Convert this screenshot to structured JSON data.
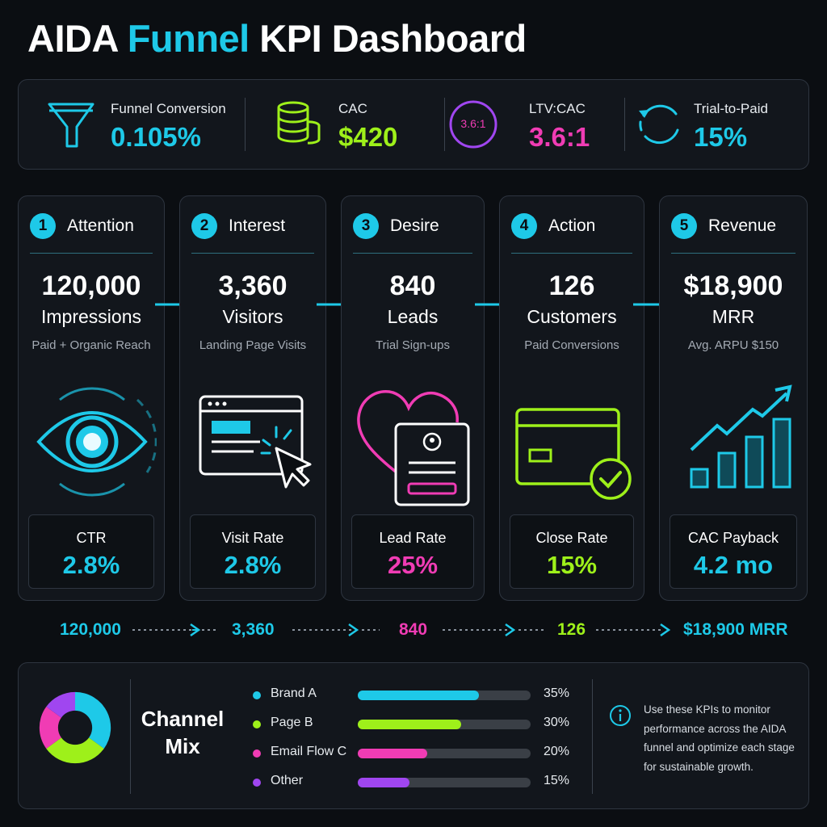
{
  "header": {
    "title_prefix": "AIDA ",
    "title_accent": "Funnel",
    "title_suffix": " KPI Dashboard"
  },
  "colors": {
    "cyan": "#1ec9e8",
    "lime": "#9ef01a",
    "magenta": "#f03cb4",
    "purple": "#a046f0",
    "bg": "#0b0e12"
  },
  "kpis": [
    {
      "label": "Funnel Conversion",
      "value": "0.105%",
      "icon": "funnel-icon",
      "color": "#1ec9e8"
    },
    {
      "label": "CAC",
      "value": "$420",
      "icon": "coin-stack-icon",
      "color": "#9ef01a"
    },
    {
      "label": "LTV:CAC",
      "value": "3.6:1",
      "icon": "ratio-badge-icon",
      "badge": "3.6:1",
      "color": "#f03cb4"
    },
    {
      "label": "Trial-to-Paid",
      "value": "15%",
      "icon": "cycle-arrows-icon",
      "color": "#1ec9e8"
    }
  ],
  "stages": [
    {
      "num": "1",
      "name": "Attention",
      "big": "120,000",
      "unit": "Impressions",
      "sub": "Paid + Organic Reach",
      "icon": "eye-icon",
      "metric_label": "CTR",
      "metric_value": "2.8%",
      "color": "#1ec9e8"
    },
    {
      "num": "2",
      "name": "Interest",
      "big": "3,360",
      "unit": "Visitors",
      "sub": "Landing Page Visits",
      "icon": "browser-click-icon",
      "metric_label": "Visit Rate",
      "metric_value": "2.8%",
      "color": "#1ec9e8"
    },
    {
      "num": "3",
      "name": "Desire",
      "big": "840",
      "unit": "Leads",
      "sub": "Trial Sign-ups",
      "icon": "heart-form-icon",
      "metric_label": "Lead Rate",
      "metric_value": "25%",
      "color": "#f03cb4"
    },
    {
      "num": "4",
      "name": "Action",
      "big": "126",
      "unit": "Customers",
      "sub": "Paid Conversions",
      "icon": "card-check-icon",
      "metric_label": "Close Rate",
      "metric_value": "15%",
      "color": "#9ef01a"
    },
    {
      "num": "5",
      "name": "Revenue",
      "big": "$18,900",
      "unit": "MRR",
      "sub": "Avg. ARPU $150",
      "icon": "growth-chart-icon",
      "metric_label": "CAC Payback",
      "metric_value": "4.2 mo",
      "color": "#1ec9e8"
    }
  ],
  "flow": [
    {
      "value": "120,000",
      "color": "#1ec9e8"
    },
    {
      "value": "3,360",
      "color": "#1ec9e8"
    },
    {
      "value": "840",
      "color": "#f03cb4"
    },
    {
      "value": "126",
      "color": "#9ef01a"
    },
    {
      "value": "$18,900 MRR",
      "color": "#1ec9e8"
    }
  ],
  "channel_mix": {
    "title_line1": "Channel",
    "title_line2": "Mix",
    "channels": [
      {
        "name": "Brand A",
        "percent": 35,
        "label": "35%",
        "color": "#1ec9e8"
      },
      {
        "name": "Page B",
        "percent": 30,
        "label": "30%",
        "color": "#9ef01a"
      },
      {
        "name": "Email Flow C",
        "percent": 20,
        "label": "20%",
        "color": "#f03cb4"
      },
      {
        "name": "Other",
        "percent": 15,
        "label": "15%",
        "color": "#a046f0"
      }
    ],
    "note": "Use these KPIs to monitor performance across the AIDA funnel and optimize each stage for sustainable growth."
  }
}
